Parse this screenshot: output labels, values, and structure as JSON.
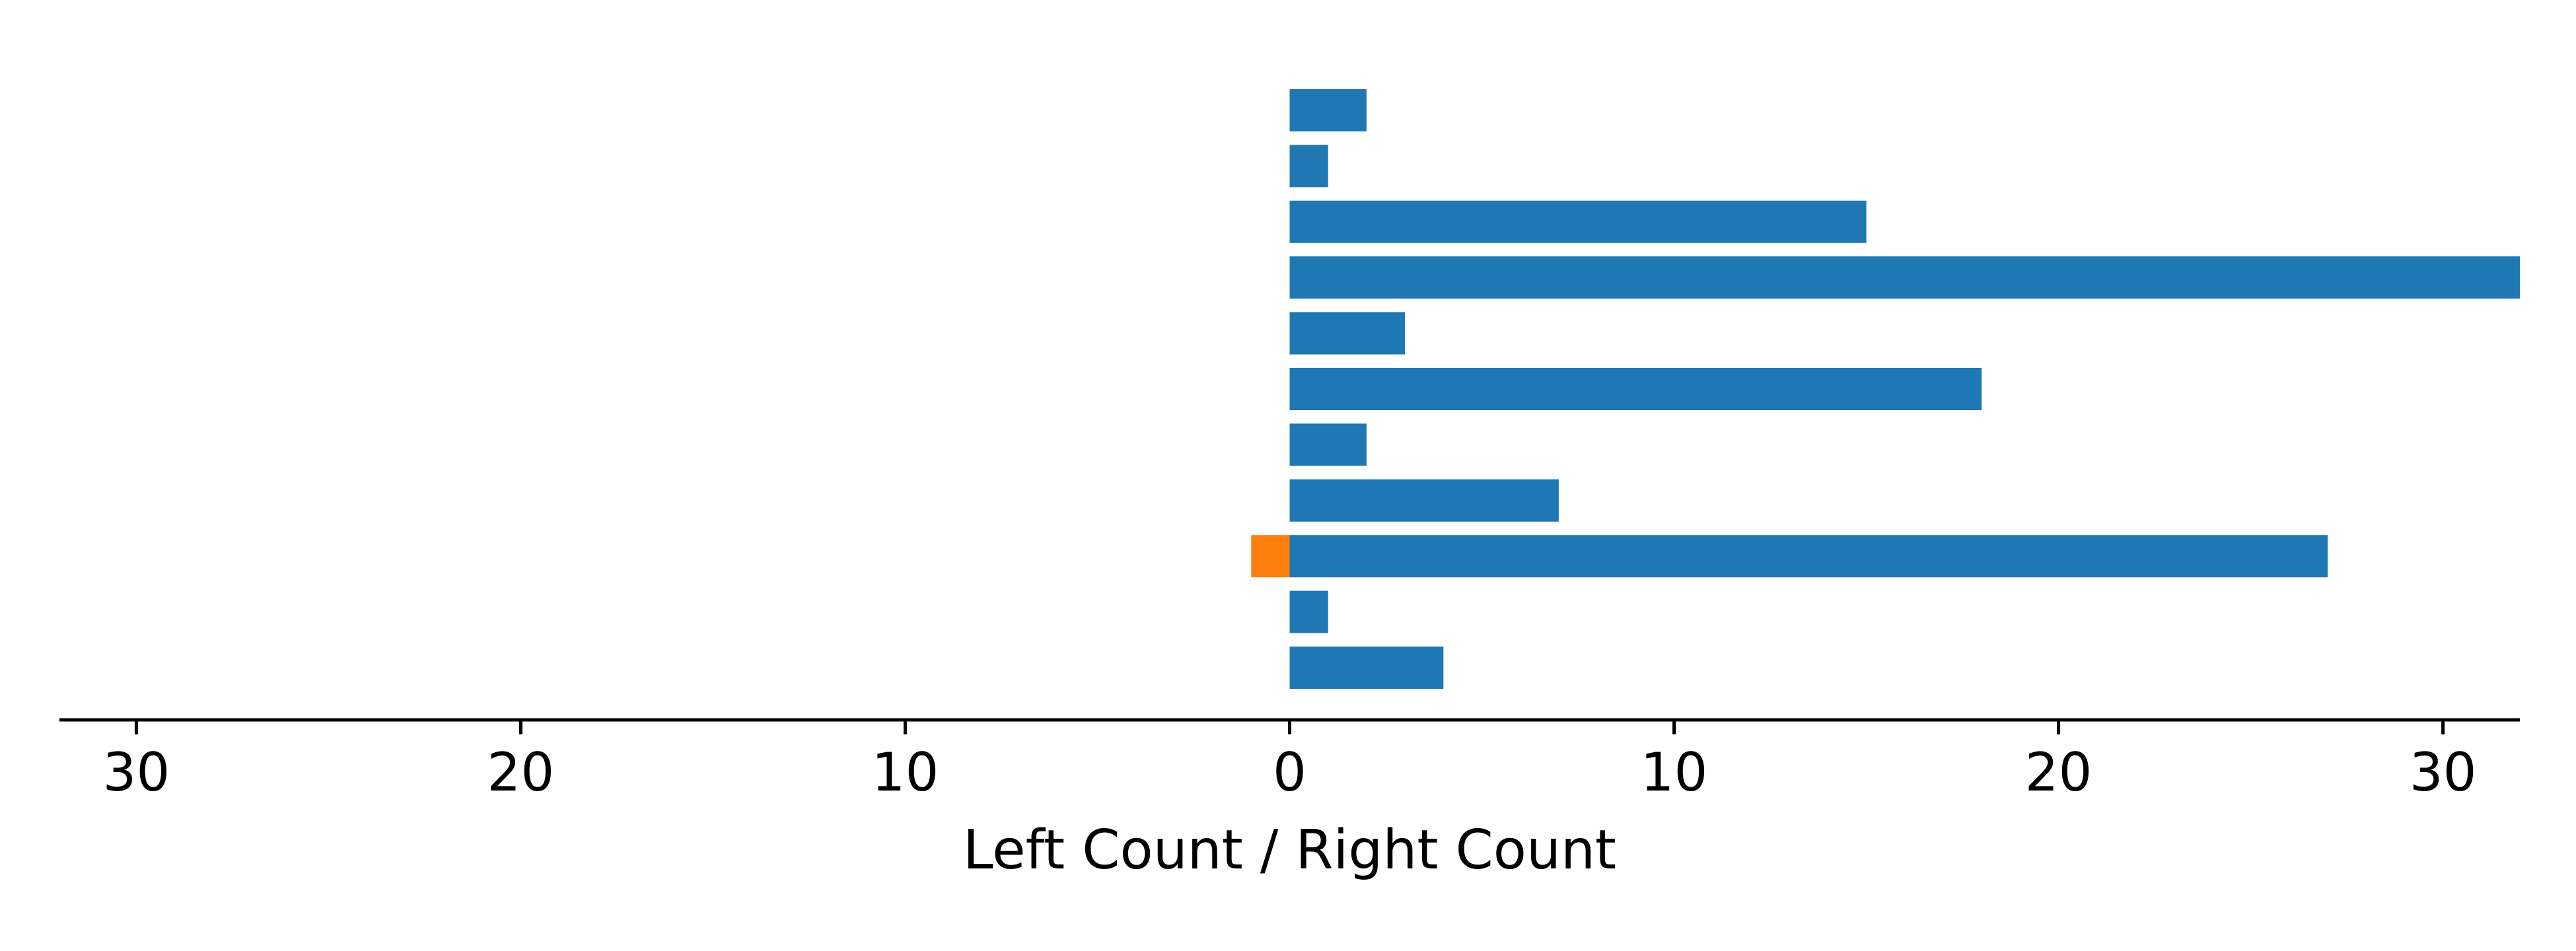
{
  "chart_data": {
    "type": "bar",
    "orientation": "horizontal",
    "title": "",
    "xlabel": "Left Count / Right Count",
    "ylabel": "",
    "xlim": [
      -32,
      32
    ],
    "x_ticks": [
      -30,
      -20,
      -10,
      0,
      10,
      20,
      30
    ],
    "x_tick_labels": [
      "30",
      "20",
      "10",
      "0",
      "10",
      "20",
      "30"
    ],
    "grid": false,
    "legend": "none",
    "categories": [
      "",
      "",
      "",
      "",
      "",
      "",
      "",
      "",
      "",
      "",
      ""
    ],
    "series": [
      {
        "side": "left",
        "color": "#ff7f0e",
        "values": [
          0,
          0,
          0,
          0,
          0,
          0,
          0,
          0,
          1,
          0,
          0
        ]
      },
      {
        "side": "right",
        "color": "#1f77b4",
        "values": [
          2,
          1,
          15,
          32,
          3,
          18,
          2,
          7,
          27,
          1,
          4
        ]
      }
    ]
  }
}
